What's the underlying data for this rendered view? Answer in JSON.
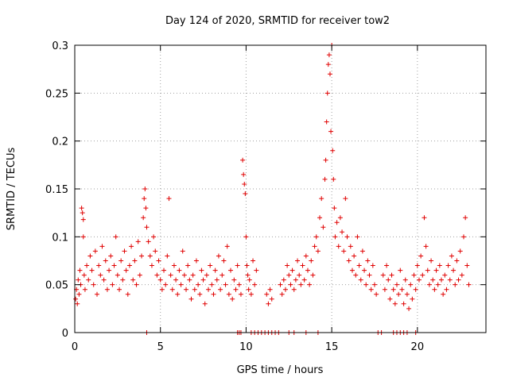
{
  "chart_data": {
    "type": "scatter",
    "title": "Day 124 of 2020, SRMTID for receiver tow2",
    "xlabel": "GPS time / hours",
    "ylabel": "SRMTID / TECUs",
    "xlim": [
      0,
      24
    ],
    "ylim": [
      0,
      0.3
    ],
    "xticks": [
      0,
      5,
      10,
      15,
      20
    ],
    "xtick_labels": [
      "0",
      "5",
      "10",
      "15",
      "20"
    ],
    "yticks": [
      0,
      0.05,
      0.1,
      0.15,
      0.2,
      0.25,
      0.3
    ],
    "ytick_labels": [
      "0",
      "0.05",
      "0.1",
      "0.15",
      "0.2",
      "0.25",
      "0.3"
    ],
    "grid": true,
    "marker": "+",
    "series": [
      {
        "name": "SRMTID",
        "color": "#e00000",
        "points": [
          [
            0.05,
            0.035
          ],
          [
            0.1,
            0.045
          ],
          [
            0.15,
            0.03
          ],
          [
            0.2,
            0.055
          ],
          [
            0.25,
            0.04
          ],
          [
            0.3,
            0.065
          ],
          [
            0.35,
            0.05
          ],
          [
            0.4,
            0.13
          ],
          [
            0.45,
            0.125
          ],
          [
            0.5,
            0.118
          ],
          [
            0.5,
            0.1
          ],
          [
            0.55,
            0.06
          ],
          [
            0.6,
            0.045
          ],
          [
            0.7,
            0.07
          ],
          [
            0.8,
            0.055
          ],
          [
            0.9,
            0.08
          ],
          [
            1.0,
            0.065
          ],
          [
            1.1,
            0.05
          ],
          [
            1.2,
            0.085
          ],
          [
            1.3,
            0.04
          ],
          [
            1.4,
            0.07
          ],
          [
            1.5,
            0.06
          ],
          [
            1.6,
            0.09
          ],
          [
            1.7,
            0.055
          ],
          [
            1.8,
            0.075
          ],
          [
            1.9,
            0.045
          ],
          [
            2.0,
            0.065
          ],
          [
            2.1,
            0.08
          ],
          [
            2.2,
            0.05
          ],
          [
            2.3,
            0.07
          ],
          [
            2.4,
            0.1
          ],
          [
            2.5,
            0.06
          ],
          [
            2.6,
            0.045
          ],
          [
            2.7,
            0.075
          ],
          [
            2.8,
            0.055
          ],
          [
            2.9,
            0.085
          ],
          [
            3.0,
            0.065
          ],
          [
            3.1,
            0.04
          ],
          [
            3.2,
            0.07
          ],
          [
            3.3,
            0.09
          ],
          [
            3.4,
            0.055
          ],
          [
            3.5,
            0.075
          ],
          [
            3.6,
            0.05
          ],
          [
            3.7,
            0.095
          ],
          [
            3.8,
            0.06
          ],
          [
            3.9,
            0.08
          ],
          [
            4.0,
            0.12
          ],
          [
            4.05,
            0.14
          ],
          [
            4.1,
            0.15
          ],
          [
            4.15,
            0.13
          ],
          [
            4.2,
            0.11
          ],
          [
            4.3,
            0.095
          ],
          [
            4.4,
            0.08
          ],
          [
            4.5,
            0.07
          ],
          [
            4.6,
            0.1
          ],
          [
            4.7,
            0.085
          ],
          [
            4.8,
            0.06
          ],
          [
            4.9,
            0.075
          ],
          [
            5.0,
            0.055
          ],
          [
            5.1,
            0.045
          ],
          [
            5.2,
            0.065
          ],
          [
            5.3,
            0.05
          ],
          [
            5.4,
            0.08
          ],
          [
            5.5,
            0.14
          ],
          [
            5.6,
            0.06
          ],
          [
            5.7,
            0.045
          ],
          [
            5.8,
            0.07
          ],
          [
            5.9,
            0.055
          ],
          [
            6.0,
            0.04
          ],
          [
            6.1,
            0.065
          ],
          [
            6.2,
            0.05
          ],
          [
            6.3,
            0.085
          ],
          [
            6.4,
            0.06
          ],
          [
            6.5,
            0.045
          ],
          [
            6.6,
            0.07
          ],
          [
            6.7,
            0.055
          ],
          [
            6.8,
            0.035
          ],
          [
            6.9,
            0.06
          ],
          [
            7.0,
            0.045
          ],
          [
            7.1,
            0.075
          ],
          [
            7.2,
            0.05
          ],
          [
            7.3,
            0.04
          ],
          [
            7.4,
            0.065
          ],
          [
            7.5,
            0.055
          ],
          [
            7.6,
            0.03
          ],
          [
            7.7,
            0.06
          ],
          [
            7.8,
            0.045
          ],
          [
            7.9,
            0.07
          ],
          [
            8.0,
            0.05
          ],
          [
            8.1,
            0.04
          ],
          [
            8.2,
            0.065
          ],
          [
            8.3,
            0.055
          ],
          [
            8.4,
            0.08
          ],
          [
            8.5,
            0.045
          ],
          [
            8.6,
            0.06
          ],
          [
            8.7,
            0.075
          ],
          [
            8.8,
            0.05
          ],
          [
            8.9,
            0.09
          ],
          [
            9.0,
            0.04
          ],
          [
            9.1,
            0.065
          ],
          [
            9.2,
            0.035
          ],
          [
            9.3,
            0.055
          ],
          [
            9.4,
            0.045
          ],
          [
            9.5,
            0.07
          ],
          [
            9.6,
            0.05
          ],
          [
            9.7,
            0.04
          ],
          [
            9.8,
            0.18
          ],
          [
            9.85,
            0.165
          ],
          [
            9.9,
            0.155
          ],
          [
            9.95,
            0.145
          ],
          [
            10.0,
            0.1
          ],
          [
            10.05,
            0.07
          ],
          [
            10.1,
            0.06
          ],
          [
            10.15,
            0.045
          ],
          [
            10.2,
            0.055
          ],
          [
            10.3,
            0.04
          ],
          [
            10.4,
            0.075
          ],
          [
            10.5,
            0.05
          ],
          [
            10.6,
            0.065
          ],
          [
            11.2,
            0.04
          ],
          [
            11.3,
            0.03
          ],
          [
            11.4,
            0.045
          ],
          [
            11.5,
            0.035
          ],
          [
            12.0,
            0.05
          ],
          [
            12.1,
            0.04
          ],
          [
            12.2,
            0.055
          ],
          [
            12.3,
            0.045
          ],
          [
            12.4,
            0.07
          ],
          [
            12.5,
            0.06
          ],
          [
            12.6,
            0.05
          ],
          [
            12.7,
            0.065
          ],
          [
            12.8,
            0.045
          ],
          [
            12.9,
            0.055
          ],
          [
            13.0,
            0.075
          ],
          [
            13.1,
            0.06
          ],
          [
            13.2,
            0.05
          ],
          [
            13.3,
            0.07
          ],
          [
            13.4,
            0.055
          ],
          [
            13.5,
            0.08
          ],
          [
            13.6,
            0.065
          ],
          [
            13.7,
            0.05
          ],
          [
            13.8,
            0.075
          ],
          [
            13.9,
            0.06
          ],
          [
            14.0,
            0.09
          ],
          [
            14.1,
            0.1
          ],
          [
            14.2,
            0.085
          ],
          [
            14.3,
            0.12
          ],
          [
            14.4,
            0.14
          ],
          [
            14.5,
            0.11
          ],
          [
            14.6,
            0.16
          ],
          [
            14.65,
            0.18
          ],
          [
            14.7,
            0.22
          ],
          [
            14.75,
            0.25
          ],
          [
            14.8,
            0.28
          ],
          [
            14.85,
            0.29
          ],
          [
            14.9,
            0.27
          ],
          [
            14.95,
            0.21
          ],
          [
            15.0,
            0.3
          ],
          [
            15.05,
            0.19
          ],
          [
            15.1,
            0.16
          ],
          [
            15.15,
            0.13
          ],
          [
            15.2,
            0.1
          ],
          [
            15.3,
            0.115
          ],
          [
            15.4,
            0.09
          ],
          [
            15.5,
            0.12
          ],
          [
            15.6,
            0.105
          ],
          [
            15.7,
            0.085
          ],
          [
            15.8,
            0.14
          ],
          [
            15.9,
            0.1
          ],
          [
            16.0,
            0.075
          ],
          [
            16.1,
            0.09
          ],
          [
            16.2,
            0.065
          ],
          [
            16.3,
            0.08
          ],
          [
            16.4,
            0.06
          ],
          [
            16.5,
            0.1
          ],
          [
            16.6,
            0.07
          ],
          [
            16.7,
            0.055
          ],
          [
            16.8,
            0.085
          ],
          [
            16.9,
            0.065
          ],
          [
            17.0,
            0.05
          ],
          [
            17.1,
            0.075
          ],
          [
            17.2,
            0.06
          ],
          [
            17.3,
            0.045
          ],
          [
            17.4,
            0.07
          ],
          [
            17.5,
            0.05
          ],
          [
            17.6,
            0.04
          ],
          [
            18.0,
            0.06
          ],
          [
            18.1,
            0.045
          ],
          [
            18.2,
            0.07
          ],
          [
            18.3,
            0.055
          ],
          [
            18.4,
            0.035
          ],
          [
            18.5,
            0.06
          ],
          [
            18.6,
            0.045
          ],
          [
            18.7,
            0.03
          ],
          [
            18.8,
            0.05
          ],
          [
            18.9,
            0.04
          ],
          [
            19.0,
            0.065
          ],
          [
            19.1,
            0.045
          ],
          [
            19.2,
            0.03
          ],
          [
            19.3,
            0.055
          ],
          [
            19.4,
            0.04
          ],
          [
            19.5,
            0.025
          ],
          [
            19.6,
            0.05
          ],
          [
            19.7,
            0.035
          ],
          [
            19.8,
            0.06
          ],
          [
            19.9,
            0.045
          ],
          [
            20.0,
            0.07
          ],
          [
            20.1,
            0.055
          ],
          [
            20.2,
            0.08
          ],
          [
            20.3,
            0.06
          ],
          [
            20.4,
            0.12
          ],
          [
            20.5,
            0.09
          ],
          [
            20.6,
            0.065
          ],
          [
            20.7,
            0.05
          ],
          [
            20.8,
            0.075
          ],
          [
            20.9,
            0.055
          ],
          [
            21.0,
            0.045
          ],
          [
            21.1,
            0.065
          ],
          [
            21.2,
            0.05
          ],
          [
            21.3,
            0.07
          ],
          [
            21.4,
            0.055
          ],
          [
            21.5,
            0.04
          ],
          [
            21.6,
            0.06
          ],
          [
            21.7,
            0.045
          ],
          [
            21.8,
            0.07
          ],
          [
            21.9,
            0.055
          ],
          [
            22.0,
            0.08
          ],
          [
            22.1,
            0.065
          ],
          [
            22.2,
            0.05
          ],
          [
            22.3,
            0.075
          ],
          [
            22.4,
            0.055
          ],
          [
            22.5,
            0.085
          ],
          [
            22.6,
            0.06
          ],
          [
            22.7,
            0.1
          ],
          [
            22.8,
            0.12
          ],
          [
            22.9,
            0.07
          ],
          [
            23.0,
            0.05
          ]
        ]
      }
    ],
    "zero_points_x": [
      4.2,
      9.5,
      9.6,
      9.7,
      10.3,
      10.5,
      10.7,
      10.9,
      11.1,
      11.3,
      11.5,
      11.7,
      11.9,
      12.5,
      12.8,
      13.5,
      14.2,
      17.7,
      17.9,
      18.6,
      18.8,
      19.0,
      19.2,
      19.4,
      19.9
    ]
  }
}
